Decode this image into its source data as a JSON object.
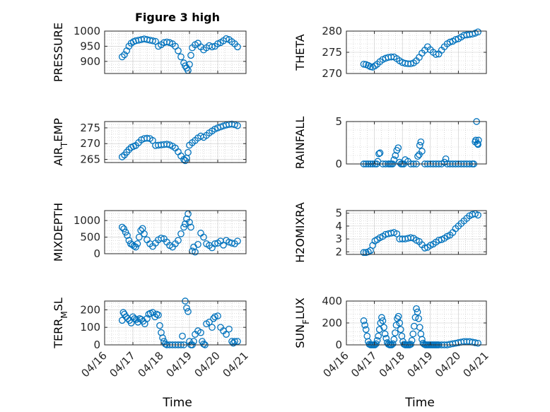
{
  "figure": {
    "title": "Figure 3 high",
    "xlabel": "Time"
  },
  "colors": {
    "marker": "#0072BD",
    "axis": "#262626",
    "grid": "#b0b0b0"
  },
  "chart_data": [
    {
      "type": "scatter",
      "panel": "top-left",
      "ylabel": "PRESSURE",
      "xlim": [
        0,
        5
      ],
      "ylim": [
        860,
        1000
      ],
      "yticks": [
        900,
        950,
        1000
      ],
      "xticks": [
        0,
        1,
        2,
        3,
        4,
        5
      ],
      "xticklabels": [
        "04/16",
        "04/17",
        "04/18",
        "04/19",
        "04/20",
        "04/21"
      ],
      "show_xticklabels": false,
      "title": "Figure 3 high",
      "x": [
        0.62,
        0.7,
        0.78,
        0.86,
        0.94,
        1.02,
        1.1,
        1.2,
        1.3,
        1.4,
        1.5,
        1.6,
        1.7,
        1.8,
        1.9,
        2.0,
        2.1,
        2.2,
        2.3,
        2.4,
        2.5,
        2.6,
        2.7,
        2.8,
        2.85,
        2.9,
        2.95,
        3.0,
        3.05,
        3.1,
        3.2,
        3.3,
        3.4,
        3.5,
        3.6,
        3.7,
        3.8,
        3.9,
        4.0,
        4.1,
        4.2,
        4.3,
        4.4,
        4.5,
        4.6,
        4.7
      ],
      "y": [
        915,
        922,
        935,
        950,
        960,
        965,
        968,
        970,
        972,
        974,
        972,
        970,
        968,
        966,
        950,
        955,
        962,
        964,
        962,
        958,
        950,
        935,
        915,
        895,
        885,
        878,
        870,
        890,
        920,
        945,
        955,
        960,
        948,
        938,
        945,
        952,
        948,
        950,
        958,
        962,
        968,
        975,
        972,
        965,
        958,
        948
      ]
    },
    {
      "type": "scatter",
      "panel": "top-right",
      "ylabel": "THETA",
      "xlim": [
        0,
        5
      ],
      "ylim": [
        270,
        280
      ],
      "yticks": [
        270,
        275,
        280
      ],
      "xticks": [
        0,
        1,
        2,
        3,
        4,
        5
      ],
      "xticklabels": [
        "04/16",
        "04/17",
        "04/18",
        "04/19",
        "04/20",
        "04/21"
      ],
      "show_xticklabels": false,
      "x": [
        0.62,
        0.7,
        0.78,
        0.86,
        0.94,
        1.02,
        1.1,
        1.2,
        1.3,
        1.4,
        1.5,
        1.6,
        1.7,
        1.8,
        1.9,
        2.0,
        2.1,
        2.2,
        2.3,
        2.4,
        2.5,
        2.6,
        2.7,
        2.8,
        2.9,
        3.0,
        3.1,
        3.2,
        3.3,
        3.4,
        3.5,
        3.6,
        3.7,
        3.8,
        3.9,
        4.0,
        4.1,
        4.2,
        4.3,
        4.4,
        4.5,
        4.6,
        4.7
      ],
      "y": [
        272.2,
        272.1,
        271.9,
        271.6,
        271.5,
        271.8,
        272.2,
        272.8,
        273.3,
        273.6,
        273.8,
        273.9,
        273.9,
        273.5,
        273.0,
        272.6,
        272.4,
        272.3,
        272.3,
        272.5,
        273.0,
        273.8,
        274.8,
        275.5,
        276.3,
        275.6,
        275.0,
        274.5,
        274.6,
        275.5,
        276.3,
        277.0,
        277.4,
        277.6,
        278.0,
        278.2,
        278.6,
        279.0,
        279.1,
        279.2,
        279.3,
        279.5,
        279.8
      ]
    },
    {
      "type": "scatter",
      "panel": "middle-upper-left",
      "ylabel": "AIR_TEMP",
      "xlim": [
        0,
        5
      ],
      "ylim": [
        264,
        277
      ],
      "yticks": [
        265,
        270,
        275
      ],
      "xticks": [
        0,
        1,
        2,
        3,
        4,
        5
      ],
      "xticklabels": [
        "04/16",
        "04/17",
        "04/18",
        "04/19",
        "04/20",
        "04/21"
      ],
      "show_xticklabels": false,
      "x": [
        0.62,
        0.7,
        0.78,
        0.86,
        0.94,
        1.02,
        1.1,
        1.2,
        1.3,
        1.4,
        1.5,
        1.6,
        1.7,
        1.8,
        1.9,
        2.0,
        2.1,
        2.2,
        2.3,
        2.4,
        2.5,
        2.6,
        2.7,
        2.8,
        2.85,
        2.9,
        2.95,
        3.0,
        3.1,
        3.2,
        3.3,
        3.4,
        3.5,
        3.6,
        3.7,
        3.8,
        3.9,
        4.0,
        4.1,
        4.2,
        4.3,
        4.4,
        4.5,
        4.6,
        4.7
      ],
      "y": [
        265.8,
        266.4,
        267.3,
        268.1,
        268.8,
        269.1,
        269.4,
        270.3,
        271.2,
        271.6,
        271.7,
        271.6,
        271.0,
        269.4,
        269.5,
        269.6,
        269.7,
        269.8,
        269.6,
        269.2,
        268.6,
        267.4,
        266.1,
        265.0,
        264.6,
        265.4,
        267.2,
        269.5,
        270.3,
        271.0,
        271.8,
        272.4,
        272.0,
        272.6,
        273.4,
        274.0,
        274.6,
        275.0,
        275.3,
        275.6,
        275.9,
        276.1,
        276.2,
        276.0,
        275.7
      ]
    },
    {
      "type": "scatter",
      "panel": "middle-upper-right",
      "ylabel": "RAINFALL",
      "xlim": [
        0,
        5
      ],
      "ylim": [
        0,
        5
      ],
      "yticks": [
        0,
        5
      ],
      "xticks": [
        0,
        1,
        2,
        3,
        4,
        5
      ],
      "xticklabels": [
        "04/16",
        "04/17",
        "04/18",
        "04/19",
        "04/20",
        "04/21"
      ],
      "show_xticklabels": false,
      "x": [
        0.62,
        0.7,
        0.78,
        0.86,
        0.94,
        1.02,
        1.08,
        1.12,
        1.16,
        1.2,
        1.3,
        1.4,
        1.5,
        1.55,
        1.6,
        1.65,
        1.7,
        1.75,
        1.8,
        1.85,
        1.9,
        1.95,
        2.0,
        2.05,
        2.1,
        2.2,
        2.3,
        2.4,
        2.5,
        2.55,
        2.6,
        2.62,
        2.66,
        2.7,
        2.8,
        2.9,
        3.0,
        3.1,
        3.2,
        3.3,
        3.4,
        3.5,
        3.55,
        3.6,
        3.7,
        3.8,
        3.9,
        4.0,
        4.1,
        4.2,
        4.3,
        4.4,
        4.5,
        4.55,
        4.6,
        4.62,
        4.65,
        4.68,
        4.7,
        4.72
      ],
      "y": [
        0,
        0,
        0,
        0,
        0,
        0,
        0,
        0.3,
        1.2,
        1.3,
        0,
        0,
        0,
        0,
        0,
        0,
        0.5,
        1.0,
        1.6,
        1.9,
        0.2,
        0,
        0,
        0,
        0.5,
        0.3,
        0,
        0,
        0,
        0.9,
        1.1,
        2.2,
        2.6,
        1.5,
        0,
        0,
        0,
        0,
        0,
        0,
        0,
        0.2,
        0.6,
        0,
        0,
        0,
        0,
        0,
        0,
        0,
        0,
        0,
        0,
        0,
        2.6,
        2.8,
        5.0,
        2.4,
        2.3,
        2.8
      ]
    },
    {
      "type": "scatter",
      "panel": "middle-lower-left",
      "ylabel": "MIXDEPTH",
      "xlim": [
        0,
        5
      ],
      "ylim": [
        0,
        1300
      ],
      "yticks": [
        0,
        500,
        1000
      ],
      "xticks": [
        0,
        1,
        2,
        3,
        4,
        5
      ],
      "xticklabels": [
        "04/16",
        "04/17",
        "04/18",
        "04/19",
        "04/20",
        "04/21"
      ],
      "show_xticklabels": false,
      "x": [
        0.62,
        0.68,
        0.74,
        0.8,
        0.86,
        0.92,
        0.98,
        1.04,
        1.1,
        1.16,
        1.22,
        1.28,
        1.34,
        1.4,
        1.5,
        1.6,
        1.7,
        1.8,
        1.9,
        2.0,
        2.1,
        2.2,
        2.3,
        2.4,
        2.5,
        2.6,
        2.7,
        2.8,
        2.85,
        2.9,
        2.95,
        3.0,
        3.05,
        3.1,
        3.15,
        3.2,
        3.3,
        3.4,
        3.5,
        3.6,
        3.7,
        3.8,
        3.9,
        4.0,
        4.1,
        4.2,
        4.3,
        4.4,
        4.5,
        4.6,
        4.7
      ],
      "y": [
        800,
        750,
        650,
        550,
        400,
        300,
        270,
        230,
        200,
        300,
        500,
        700,
        760,
        600,
        420,
        300,
        220,
        320,
        420,
        470,
        450,
        350,
        250,
        200,
        300,
        400,
        600,
        800,
        900,
        1050,
        1200,
        950,
        800,
        80,
        200,
        50,
        280,
        620,
        500,
        300,
        250,
        180,
        300,
        320,
        380,
        260,
        400,
        350,
        320,
        300,
        380
      ]
    },
    {
      "type": "scatter",
      "panel": "middle-lower-right",
      "ylabel": "H2OMIXRA",
      "xlim": [
        0,
        5
      ],
      "ylim": [
        1.8,
        5.2
      ],
      "yticks": [
        2,
        3,
        4,
        5
      ],
      "xticks": [
        0,
        1,
        2,
        3,
        4,
        5
      ],
      "xticklabels": [
        "04/16",
        "04/17",
        "04/18",
        "04/19",
        "04/20",
        "04/21"
      ],
      "show_xticklabels": false,
      "x": [
        0.62,
        0.7,
        0.78,
        0.86,
        0.94,
        1.02,
        1.1,
        1.2,
        1.3,
        1.4,
        1.5,
        1.6,
        1.7,
        1.8,
        1.9,
        2.0,
        2.1,
        2.2,
        2.3,
        2.4,
        2.5,
        2.6,
        2.7,
        2.8,
        2.9,
        3.0,
        3.1,
        3.2,
        3.3,
        3.4,
        3.5,
        3.6,
        3.7,
        3.8,
        3.9,
        4.0,
        4.1,
        4.2,
        4.3,
        4.4,
        4.5,
        4.6,
        4.7
      ],
      "y": [
        1.95,
        1.95,
        2.0,
        2.1,
        2.5,
        2.85,
        2.95,
        3.1,
        3.2,
        3.35,
        3.4,
        3.45,
        3.5,
        3.4,
        3.0,
        3.0,
        3.0,
        3.05,
        3.1,
        3.05,
        2.9,
        2.8,
        2.55,
        2.3,
        2.35,
        2.5,
        2.6,
        2.75,
        2.9,
        2.95,
        3.05,
        3.2,
        3.3,
        3.5,
        3.8,
        4.0,
        4.2,
        4.4,
        4.6,
        4.8,
        4.9,
        4.95,
        4.85
      ]
    },
    {
      "type": "scatter",
      "panel": "bottom-left",
      "ylabel": "TERR_MSL",
      "xlim": [
        0,
        5
      ],
      "ylim": [
        0,
        250
      ],
      "yticks": [
        0,
        100,
        200
      ],
      "xticks": [
        0,
        1,
        2,
        3,
        4,
        5
      ],
      "xticklabels": [
        "04/16",
        "04/17",
        "04/18",
        "04/19",
        "04/20",
        "04/21"
      ],
      "show_xticklabels": true,
      "x": [
        0.62,
        0.66,
        0.7,
        0.76,
        0.82,
        0.88,
        0.94,
        1.0,
        1.06,
        1.12,
        1.18,
        1.24,
        1.3,
        1.36,
        1.42,
        1.5,
        1.56,
        1.62,
        1.7,
        1.78,
        1.84,
        1.9,
        1.95,
        2.0,
        2.05,
        2.1,
        2.15,
        2.2,
        2.3,
        2.4,
        2.5,
        2.6,
        2.7,
        2.75,
        2.8,
        2.85,
        2.9,
        2.95,
        3.0,
        3.05,
        3.1,
        3.15,
        3.2,
        3.3,
        3.4,
        3.45,
        3.5,
        3.55,
        3.6,
        3.7,
        3.8,
        3.85,
        3.9,
        4.0,
        4.1,
        4.2,
        4.3,
        4.4,
        4.5,
        4.55,
        4.6,
        4.7
      ],
      "y": [
        140,
        185,
        175,
        160,
        150,
        140,
        125,
        160,
        150,
        145,
        130,
        150,
        145,
        135,
        120,
        150,
        175,
        180,
        185,
        160,
        175,
        170,
        110,
        70,
        40,
        20,
        5,
        0,
        0,
        0,
        0,
        0,
        0,
        50,
        0,
        250,
        210,
        190,
        20,
        0,
        0,
        20,
        60,
        80,
        70,
        20,
        5,
        0,
        120,
        130,
        100,
        150,
        160,
        165,
        100,
        80,
        60,
        90,
        20,
        10,
        20,
        20
      ]
    },
    {
      "type": "scatter",
      "panel": "bottom-right",
      "ylabel": "SUN_FLUX",
      "xlim": [
        0,
        5
      ],
      "ylim": [
        0,
        400
      ],
      "yticks": [
        0,
        200,
        400
      ],
      "xticks": [
        0,
        1,
        2,
        3,
        4,
        5
      ],
      "xticklabels": [
        "04/16",
        "04/17",
        "04/18",
        "04/19",
        "04/20",
        "04/21"
      ],
      "show_xticklabels": true,
      "x": [
        0.62,
        0.66,
        0.7,
        0.74,
        0.78,
        0.82,
        0.86,
        0.9,
        0.94,
        0.98,
        1.02,
        1.06,
        1.1,
        1.14,
        1.18,
        1.22,
        1.26,
        1.3,
        1.34,
        1.38,
        1.42,
        1.46,
        1.5,
        1.54,
        1.58,
        1.62,
        1.66,
        1.7,
        1.74,
        1.78,
        1.82,
        1.86,
        1.9,
        1.94,
        1.98,
        2.02,
        2.06,
        2.1,
        2.14,
        2.18,
        2.22,
        2.26,
        2.3,
        2.34,
        2.38,
        2.42,
        2.46,
        2.5,
        2.54,
        2.58,
        2.62,
        2.66,
        2.7,
        2.74,
        2.78,
        2.82,
        2.86,
        2.9,
        2.94,
        2.98,
        3.02,
        3.06,
        3.1,
        3.14,
        3.18,
        3.22,
        3.26,
        3.3,
        3.4,
        3.5,
        3.6,
        3.7,
        3.8,
        3.9,
        4.0,
        4.1,
        4.2,
        4.3,
        4.4,
        4.5,
        4.6,
        4.7
      ],
      "y": [
        220,
        180,
        140,
        80,
        30,
        5,
        0,
        0,
        0,
        0,
        0,
        10,
        40,
        80,
        140,
        200,
        250,
        220,
        160,
        100,
        60,
        20,
        5,
        0,
        0,
        0,
        10,
        50,
        110,
        180,
        240,
        260,
        200,
        140,
        80,
        30,
        5,
        0,
        0,
        0,
        0,
        0,
        5,
        40,
        100,
        170,
        250,
        330,
        300,
        240,
        160,
        100,
        50,
        15,
        5,
        0,
        0,
        0,
        0,
        0,
        0,
        0,
        0,
        0,
        0,
        0,
        0,
        0,
        0,
        0,
        0,
        5,
        10,
        15,
        20,
        25,
        30,
        30,
        30,
        25,
        20,
        15
      ]
    }
  ]
}
